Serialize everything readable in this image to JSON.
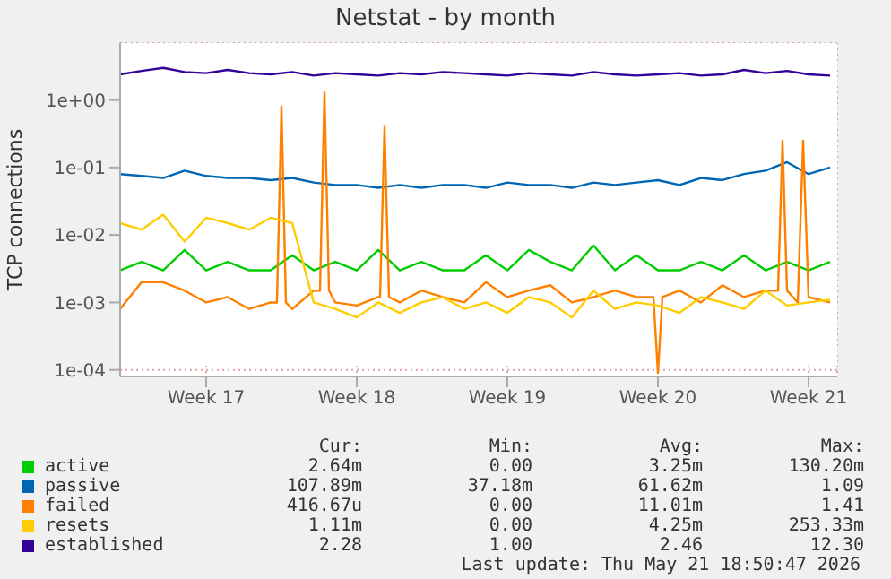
{
  "chart_data": {
    "type": "line",
    "title": "Netstat - by month",
    "ylabel": "TCP connections",
    "log": "y",
    "grid": true,
    "legend": "bottom",
    "marker": "none",
    "line_style": "solid",
    "x": [
      "2026-04-18",
      "2026-04-19",
      "2026-04-20",
      "2026-04-21",
      "2026-04-22",
      "2026-04-23",
      "2026-04-24",
      "2026-04-25",
      "2026-04-26",
      "2026-04-27",
      "2026-04-28",
      "2026-04-29",
      "2026-04-30",
      "2026-05-01",
      "2026-05-02",
      "2026-05-03",
      "2026-05-04",
      "2026-05-05",
      "2026-05-06",
      "2026-05-07",
      "2026-05-08",
      "2026-05-09",
      "2026-05-10",
      "2026-05-11",
      "2026-05-12",
      "2026-05-13",
      "2026-05-14",
      "2026-05-15",
      "2026-05-16",
      "2026-05-17",
      "2026-05-18",
      "2026-05-19",
      "2026-05-20",
      "2026-05-21"
    ],
    "xlim": [
      "2026-04-18",
      "2026-05-21T08:00"
    ],
    "xticks": [
      {
        "value": "2026-04-22",
        "label": "Week 17"
      },
      {
        "value": "2026-04-29",
        "label": "Week 18"
      },
      {
        "value": "2026-05-06",
        "label": "Week 19"
      },
      {
        "value": "2026-05-13",
        "label": "Week 20"
      },
      {
        "value": "2026-05-20",
        "label": "Week 21"
      }
    ],
    "ylim": [
      8e-05,
      7
    ],
    "yticks": [
      {
        "value": 0.0001,
        "label": "1e-04"
      },
      {
        "value": 0.001,
        "label": "1e-03"
      },
      {
        "value": 0.01,
        "label": "1e-02"
      },
      {
        "value": 0.1,
        "label": "1e-01"
      },
      {
        "value": 1,
        "label": "1e+00"
      }
    ],
    "series": [
      {
        "name": "active",
        "color": "#00cc00",
        "values": [
          0.003,
          0.004,
          0.003,
          0.006,
          0.003,
          0.004,
          0.003,
          0.003,
          0.005,
          0.003,
          0.004,
          0.003,
          0.006,
          0.003,
          0.004,
          0.003,
          0.003,
          0.005,
          0.003,
          0.006,
          0.004,
          0.003,
          0.007,
          0.003,
          0.005,
          0.003,
          0.003,
          0.004,
          0.003,
          0.005,
          0.003,
          0.004,
          0.003,
          0.004
        ]
      },
      {
        "name": "passive",
        "color": "#0066b3",
        "values": [
          0.08,
          0.075,
          0.07,
          0.09,
          0.075,
          0.07,
          0.07,
          0.065,
          0.07,
          0.06,
          0.055,
          0.055,
          0.05,
          0.055,
          0.05,
          0.055,
          0.055,
          0.05,
          0.06,
          0.055,
          0.055,
          0.05,
          0.06,
          0.055,
          0.06,
          0.065,
          0.055,
          0.07,
          0.065,
          0.08,
          0.09,
          0.12,
          0.08,
          0.1
        ]
      },
      {
        "name": "failed",
        "color": "#ff8000",
        "x": [
          "2026-04-18",
          "2026-04-19",
          "2026-04-20",
          "2026-04-21",
          "2026-04-22",
          "2026-04-23",
          "2026-04-24",
          "2026-04-25",
          "2026-04-25T07:00",
          "2026-04-25T12:00",
          "2026-04-25T17:00",
          "2026-04-26",
          "2026-04-27",
          "2026-04-27T07:00",
          "2026-04-27T12:00",
          "2026-04-27T17:00",
          "2026-04-28",
          "2026-04-29",
          "2026-04-30",
          "2026-04-30T02:00",
          "2026-04-30T07:00",
          "2026-04-30T12:00",
          "2026-05-01",
          "2026-05-02",
          "2026-05-03",
          "2026-05-04",
          "2026-05-05",
          "2026-05-06",
          "2026-05-07",
          "2026-05-08",
          "2026-05-09",
          "2026-05-10",
          "2026-05-11",
          "2026-05-12",
          "2026-05-12T19:00",
          "2026-05-13",
          "2026-05-13T05:00",
          "2026-05-14",
          "2026-05-15",
          "2026-05-16",
          "2026-05-17",
          "2026-05-18",
          "2026-05-18T14:00",
          "2026-05-18T19:00",
          "2026-05-19",
          "2026-05-19T12:00",
          "2026-05-19T18:00",
          "2026-05-20",
          "2026-05-21"
        ],
        "values": [
          0.0008,
          0.002,
          0.002,
          0.0015,
          0.001,
          0.0012,
          0.0008,
          0.001,
          0.001,
          0.8,
          0.001,
          0.0008,
          0.0015,
          0.0015,
          1.3,
          0.0015,
          0.001,
          0.0009,
          0.0012,
          0.0012,
          0.4,
          0.0012,
          0.001,
          0.0015,
          0.0012,
          0.001,
          0.002,
          0.0012,
          0.0015,
          0.0018,
          0.001,
          0.0012,
          0.0015,
          0.0012,
          0.0012,
          9e-05,
          0.0012,
          0.0015,
          0.001,
          0.0018,
          0.0012,
          0.0015,
          0.0015,
          0.25,
          0.0015,
          0.001,
          0.25,
          0.0012,
          0.001
        ]
      },
      {
        "name": "resets",
        "color": "#ffcc00",
        "values": [
          0.015,
          0.012,
          0.02,
          0.008,
          0.018,
          0.015,
          0.012,
          0.018,
          0.015,
          0.001,
          0.0008,
          0.0006,
          0.001,
          0.0007,
          0.001,
          0.0012,
          0.0008,
          0.001,
          0.0007,
          0.0012,
          0.001,
          0.0006,
          0.0015,
          0.0008,
          0.001,
          0.0009,
          0.0007,
          0.0012,
          0.001,
          0.0008,
          0.0015,
          0.0009,
          0.001,
          0.0011
        ]
      },
      {
        "name": "established",
        "color": "#330099",
        "values": [
          2.4,
          2.7,
          3.0,
          2.6,
          2.5,
          2.8,
          2.5,
          2.4,
          2.6,
          2.3,
          2.5,
          2.4,
          2.3,
          2.5,
          2.4,
          2.6,
          2.5,
          2.4,
          2.3,
          2.5,
          2.4,
          2.3,
          2.6,
          2.4,
          2.3,
          2.4,
          2.5,
          2.3,
          2.4,
          2.8,
          2.5,
          2.7,
          2.4,
          2.3
        ]
      }
    ],
    "annotations": [
      "Cur:",
      "Min:",
      "Avg:",
      "Max:",
      "2.64m",
      "0.00",
      "3.25m",
      "130.20m",
      "107.89m",
      "37.18m",
      "61.62m",
      "1.09",
      "416.67u",
      "0.00",
      "11.01m",
      "1.41",
      "1.11m",
      "0.00",
      "4.25m",
      "253.33m",
      "2.28",
      "1.00",
      "2.46",
      "12.30",
      "Last update: Thu May 21 18:50:47 2026"
    ]
  }
}
